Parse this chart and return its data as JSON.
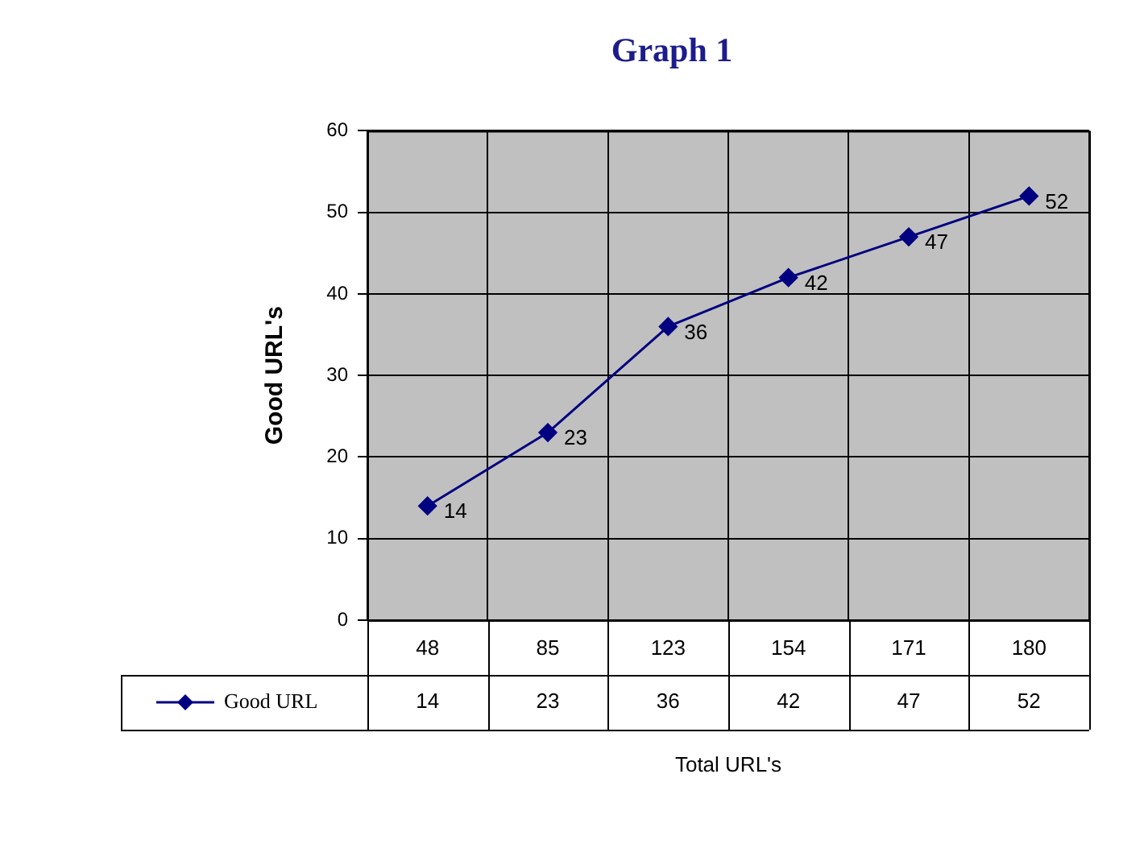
{
  "chart_data": {
    "type": "line",
    "title": "Graph 1",
    "xlabel": "Total URL's",
    "ylabel": "Good URL's",
    "categories": [
      "48",
      "85",
      "123",
      "154",
      "171",
      "180"
    ],
    "series": [
      {
        "name": "Good URL",
        "color": "#000080",
        "values": [
          14,
          23,
          36,
          42,
          47,
          52
        ]
      }
    ],
    "annotations": [
      "14",
      "23",
      "36",
      "42",
      "47",
      "52"
    ],
    "ylim": [
      0,
      60
    ],
    "yticks": [
      0,
      10,
      20,
      30,
      40,
      50,
      60
    ],
    "grid": true,
    "legend": "bottom",
    "marker": "diamond",
    "line_style": "solid",
    "data_labels": true
  }
}
